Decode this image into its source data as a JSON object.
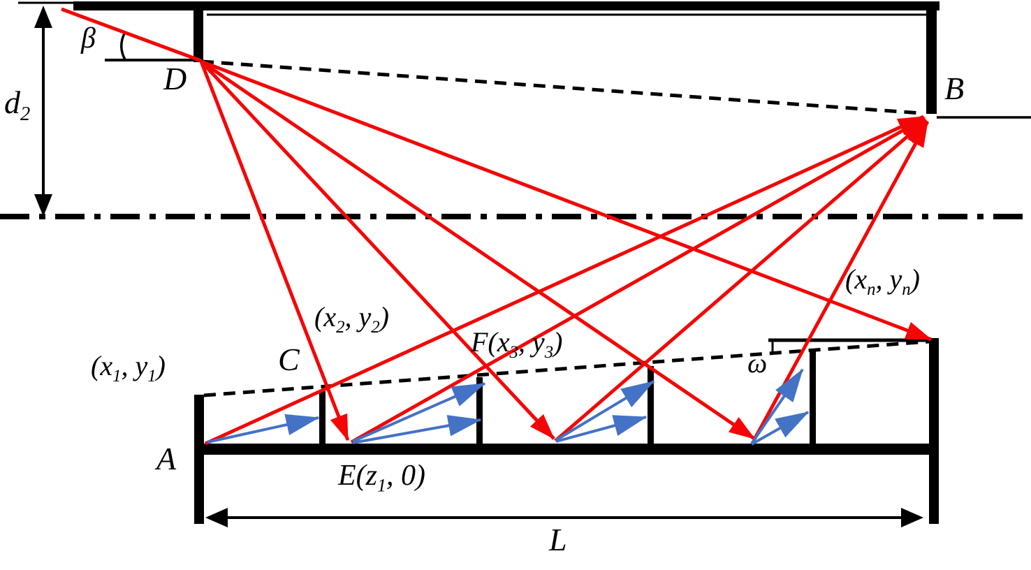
{
  "diagram": {
    "background": "#ffffff",
    "colors": {
      "structure": "#000000",
      "ray": "#f40606",
      "velocity_arrow": "#4472c4",
      "background": "#ffffff"
    },
    "labels": {
      "d2": {
        "segments": [
          {
            "t": "d"
          },
          {
            "t": "2",
            "sub": true
          }
        ]
      },
      "beta": {
        "segments": [
          {
            "t": "β"
          }
        ]
      },
      "D": {
        "segments": [
          {
            "t": "D"
          }
        ]
      },
      "B": {
        "segments": [
          {
            "t": "B"
          }
        ]
      },
      "A": {
        "segments": [
          {
            "t": "A"
          }
        ]
      },
      "C": {
        "segments": [
          {
            "t": "C"
          }
        ]
      },
      "omega": {
        "segments": [
          {
            "t": "ω"
          }
        ]
      },
      "p1": {
        "segments": [
          {
            "t": "(x"
          },
          {
            "t": "1",
            "sub": true
          },
          {
            "t": ", y"
          },
          {
            "t": "1",
            "sub": true
          },
          {
            "t": ")"
          }
        ]
      },
      "p2": {
        "segments": [
          {
            "t": "(x"
          },
          {
            "t": "2",
            "sub": true
          },
          {
            "t": ", y"
          },
          {
            "t": "2",
            "sub": true
          },
          {
            "t": ")"
          }
        ]
      },
      "p3": {
        "segments": [
          {
            "t": "F(x"
          },
          {
            "t": "3",
            "sub": true
          },
          {
            "t": ", y"
          },
          {
            "t": "3",
            "sub": true
          },
          {
            "t": ")"
          }
        ]
      },
      "pn": {
        "segments": [
          {
            "t": "(x"
          },
          {
            "t": "n",
            "sub": true
          },
          {
            "t": ", y"
          },
          {
            "t": "n",
            "sub": true
          },
          {
            "t": ")"
          }
        ]
      },
      "E": {
        "segments": [
          {
            "t": "E(z"
          },
          {
            "t": "1",
            "sub": true
          },
          {
            "t": ", 0)"
          }
        ]
      },
      "L": {
        "segments": [
          {
            "t": "L"
          }
        ]
      }
    }
  }
}
